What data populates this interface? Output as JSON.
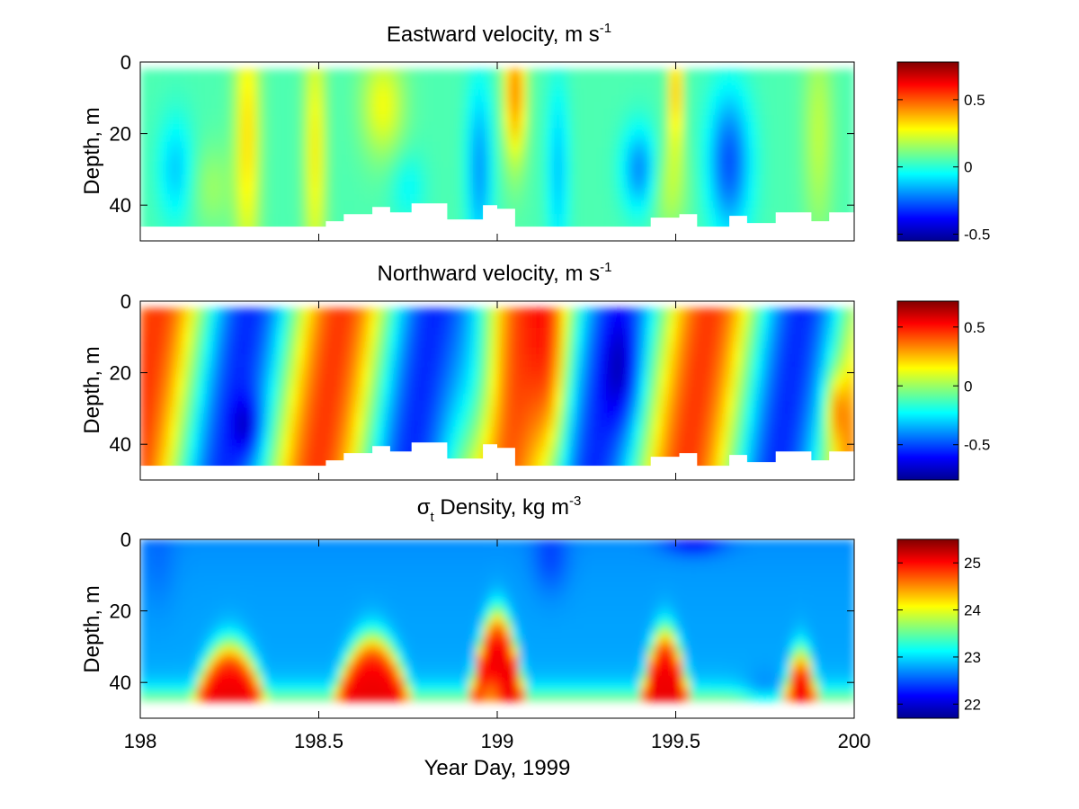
{
  "figure": {
    "shared_xlabel": "Year Day, 1999"
  },
  "chart_data": [
    {
      "type": "heatmap",
      "title_main": "Eastward velocity, m s",
      "title_exp": "-1",
      "ylabel": "Depth, m",
      "xlim": [
        198,
        200
      ],
      "ylim": [
        0,
        50
      ],
      "x_ticks": [
        198,
        198.5,
        199,
        199.5,
        200
      ],
      "y_ticks": [
        0,
        20,
        40
      ],
      "clim": [
        -0.55,
        0.78
      ],
      "colorbar_ticks": [
        {
          "value": 0.5,
          "label": "0.5"
        },
        {
          "value": 0,
          "label": "0"
        },
        {
          "value": -0.5,
          "label": "-0.5"
        }
      ],
      "data_top_depth": 2,
      "bottom_depth_profile": {
        "x": [
          198,
          198.5,
          198.52,
          198.57,
          198.65,
          198.7,
          198.76,
          198.86,
          198.96,
          199.0,
          199.05,
          199.2,
          199.38,
          199.43,
          199.51,
          199.56,
          199.65,
          199.7,
          199.78,
          199.88,
          199.93,
          200
        ],
        "depth": [
          46,
          46,
          44.5,
          42.5,
          40.5,
          42,
          39.5,
          44,
          40,
          41,
          46,
          46,
          46,
          43.5,
          42.5,
          46,
          43,
          45,
          42,
          44.5,
          42,
          43
        ]
      },
      "field_description": "mostly near zero (cyan); positive (yellow) bands near days 198.3, 198.5, 199.05, 199.5; negative (blue) patches near days 198.95, 199.4, 199.65"
    },
    {
      "type": "heatmap",
      "title_main": "Northward velocity, m s",
      "title_exp": "-1",
      "ylabel": "Depth, m",
      "xlim": [
        198,
        200
      ],
      "ylim": [
        0,
        50
      ],
      "x_ticks": [
        198,
        198.5,
        199,
        199.5,
        200
      ],
      "y_ticks": [
        0,
        20,
        40
      ],
      "clim": [
        -0.8,
        0.72
      ],
      "colorbar_ticks": [
        {
          "value": 0.5,
          "label": "0.5"
        },
        {
          "value": 0,
          "label": "0"
        },
        {
          "value": -0.5,
          "label": "-0.5"
        }
      ],
      "data_top_depth": 2,
      "bottom_depth_profile": {
        "x": [
          198,
          198.5,
          198.52,
          198.57,
          198.65,
          198.7,
          198.76,
          198.86,
          198.96,
          199.0,
          199.05,
          199.2,
          199.38,
          199.43,
          199.51,
          199.56,
          199.65,
          199.7,
          199.78,
          199.88,
          199.93,
          200
        ],
        "depth": [
          46,
          46,
          44.5,
          42.5,
          40.5,
          42,
          39.5,
          44,
          40,
          41,
          46,
          46,
          46,
          43.5,
          42.5,
          46,
          43,
          45,
          42,
          44.5,
          42,
          43
        ]
      },
      "field_description": "alternating positive (red) and negative (blue) tilted bands with roughly half-day period; strongest positive near days 198.4 and 199.15"
    },
    {
      "type": "heatmap",
      "title_sym": "σ",
      "title_sub": "t",
      "title_main": " Density, kg m",
      "title_exp": "-3",
      "ylabel": "Depth, m",
      "xlim": [
        198,
        200
      ],
      "ylim": [
        0,
        50
      ],
      "x_ticks": [
        198,
        198.5,
        199,
        199.5,
        200
      ],
      "x_tick_labels": [
        "198",
        "198.5",
        "199",
        "199.5",
        "200"
      ],
      "y_ticks": [
        0,
        20,
        40
      ],
      "clim": [
        21.7,
        25.5
      ],
      "colorbar_ticks": [
        {
          "value": 25,
          "label": "25"
        },
        {
          "value": 24,
          "label": "24"
        },
        {
          "value": 23,
          "label": "23"
        },
        {
          "value": 22,
          "label": "22"
        }
      ],
      "data_top_depth": 0,
      "data_bottom_depth": 45,
      "field_description": "light water (~22.8) in upper 20 m, dense water (~25) near bottom with domes rising toward 20 m near days 198.25, 198.65, 199.0, 199.45, 199.85"
    }
  ]
}
